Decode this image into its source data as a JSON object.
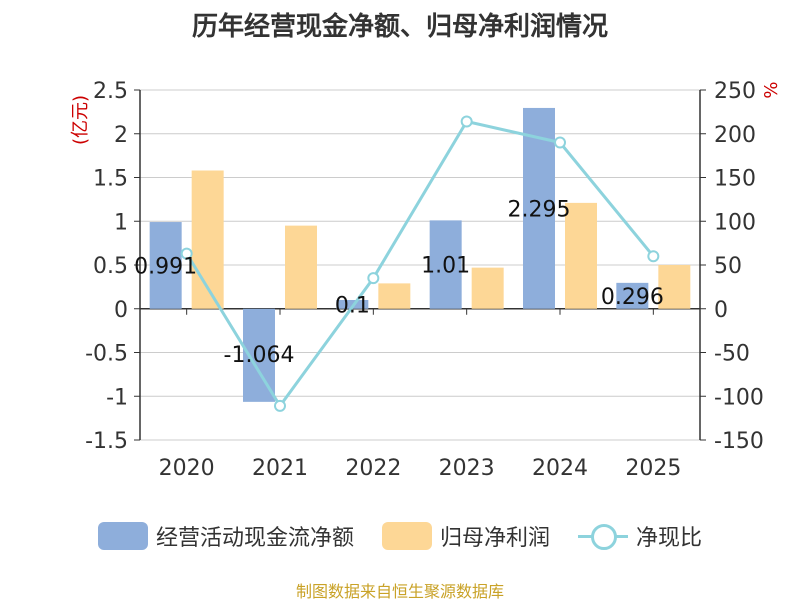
{
  "chart_data": {
    "type": "bar",
    "title": "历年经营现金净额、归母净利润情况",
    "categories": [
      "2020",
      "2021",
      "2022",
      "2023",
      "2024",
      "2025"
    ],
    "series": [
      {
        "name": "经营活动现金流净额",
        "type": "bar",
        "axis": "left",
        "values": [
          0.991,
          -1.064,
          0.1,
          1.01,
          2.295,
          0.296
        ],
        "labels": [
          "0.991",
          "-1.064",
          "0.1",
          "1.01",
          "2.295",
          "0.296"
        ]
      },
      {
        "name": "归母净利润",
        "type": "bar",
        "axis": "left",
        "values": [
          1.58,
          0.95,
          0.29,
          0.47,
          1.21,
          0.5
        ]
      },
      {
        "name": "净现比",
        "type": "line",
        "axis": "right",
        "values": [
          63,
          -111,
          35,
          214,
          190,
          60
        ]
      }
    ],
    "ylabel_left": "(亿元)",
    "ylabel_right": "%",
    "ylim_left": [
      -1.5,
      2.5
    ],
    "yticks_left": [
      2.5,
      2,
      1.5,
      1,
      0.5,
      0,
      -0.5,
      -1,
      -1.5
    ],
    "yticks_left_labels": [
      "2.5",
      "2",
      "1.5",
      "1",
      "0.5",
      "0",
      "-0.5",
      "-1",
      "-1.5"
    ],
    "ylim_right": [
      -150,
      250
    ],
    "yticks_right": [
      250,
      200,
      150,
      100,
      50,
      0,
      -50,
      -100,
      -150
    ],
    "yticks_right_labels": [
      "250",
      "200",
      "150",
      "100",
      "50",
      "0",
      "-50",
      "-100",
      "-150"
    ],
    "grid": true,
    "legend_position": "bottom"
  },
  "colors": {
    "cash_flow": "#8eaedb",
    "net_profit": "#fdd796",
    "ratio_line": "#8dd3dd",
    "left_unit": "#cc0000",
    "right_unit": "#cc0000"
  },
  "source_text": "制图数据来自恒生聚源数据库"
}
